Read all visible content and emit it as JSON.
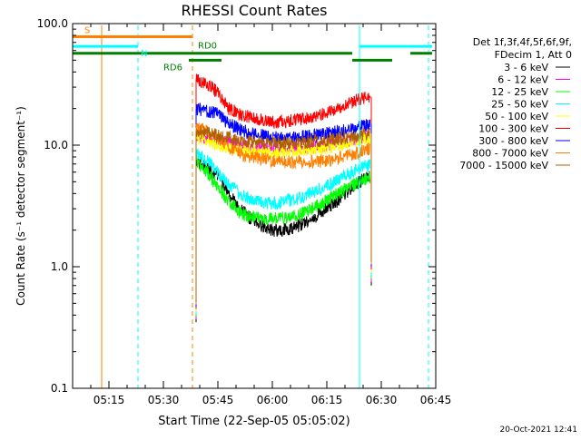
{
  "chart_data": {
    "type": "line",
    "title": "RHESSI Count Rates",
    "xlabel": "Start Time (22-Sep-05 05:05:02)",
    "ylabel": "Count Rate (s⁻¹ detector segment⁻¹)",
    "y_scale": "log",
    "ylim": [
      0.1,
      100.0
    ],
    "xlim": [
      "05:05",
      "06:45"
    ],
    "x_ticks": [
      "05:15",
      "05:30",
      "05:45",
      "06:00",
      "06:15",
      "06:30",
      "06:45"
    ],
    "y_ticks": [
      "0.1",
      "1.0",
      "10.0",
      "100.0"
    ],
    "legend_header": [
      "Det 1f,3f,4f,5f,6f,9f,",
      "FDecim 1, Att 0"
    ],
    "legend_position": "right",
    "grid": false,
    "series": [
      {
        "name": "3 - 6 keV",
        "color": "#000000",
        "x": [
          "05:39",
          "05:42",
          "05:45",
          "05:48",
          "05:51",
          "05:54",
          "05:57",
          "06:00",
          "06:03",
          "06:06",
          "06:09",
          "06:12",
          "06:15",
          "06:18",
          "06:21",
          "06:24",
          "06:27"
        ],
        "values": [
          7.5,
          6.5,
          5.5,
          4.0,
          3.0,
          2.5,
          2.2,
          2.0,
          2.0,
          2.1,
          2.3,
          2.6,
          3.0,
          3.5,
          4.2,
          5.0,
          5.5
        ]
      },
      {
        "name": "6 - 12 keV",
        "color": "#ff00ff",
        "x": [
          "05:39",
          "05:42",
          "05:45",
          "05:48",
          "05:51",
          "05:54",
          "05:57",
          "06:00",
          "06:03",
          "06:06",
          "06:09",
          "06:12",
          "06:15",
          "06:18",
          "06:21",
          "06:24",
          "06:27"
        ],
        "values": [
          12,
          11.5,
          11,
          10.5,
          10,
          9.7,
          9.5,
          9.5,
          9.5,
          9.5,
          9.5,
          9.7,
          10,
          10.5,
          11,
          11.5,
          12
        ]
      },
      {
        "name": "12 - 25 keV",
        "color": "#00ff00",
        "x": [
          "05:39",
          "05:42",
          "05:45",
          "05:48",
          "05:51",
          "05:54",
          "05:57",
          "06:00",
          "06:03",
          "06:06",
          "06:09",
          "06:12",
          "06:15",
          "06:18",
          "06:21",
          "06:24",
          "06:27"
        ],
        "values": [
          7.5,
          6.0,
          4.5,
          3.5,
          2.8,
          2.6,
          2.5,
          2.5,
          2.5,
          2.6,
          2.8,
          3.1,
          3.5,
          4.0,
          4.5,
          5.0,
          5.5
        ]
      },
      {
        "name": "25 - 50 keV",
        "color": "#00ffff",
        "x": [
          "05:39",
          "05:42",
          "05:45",
          "05:48",
          "05:51",
          "05:54",
          "05:57",
          "06:00",
          "06:03",
          "06:06",
          "06:09",
          "06:12",
          "06:15",
          "06:18",
          "06:21",
          "06:24",
          "06:27"
        ],
        "values": [
          8.5,
          7.5,
          6.0,
          4.8,
          4.0,
          3.6,
          3.4,
          3.3,
          3.4,
          3.6,
          3.8,
          4.2,
          4.6,
          5.2,
          5.8,
          6.5,
          7.0
        ]
      },
      {
        "name": "50 - 100 keV",
        "color": "#ffff00",
        "x": [
          "05:39",
          "05:42",
          "05:45",
          "05:48",
          "05:51",
          "05:54",
          "05:57",
          "06:00",
          "06:03",
          "06:06",
          "06:09",
          "06:12",
          "06:15",
          "06:18",
          "06:21",
          "06:24",
          "06:27"
        ],
        "values": [
          12,
          11,
          10,
          9.5,
          9,
          9,
          8.8,
          8.8,
          8.8,
          9,
          9,
          9.2,
          9.5,
          10,
          10.5,
          11,
          11.5
        ]
      },
      {
        "name": "100 - 300 keV",
        "color": "#ff0000",
        "x": [
          "05:39",
          "05:42",
          "05:45",
          "05:48",
          "05:51",
          "05:54",
          "05:57",
          "06:00",
          "06:03",
          "06:06",
          "06:09",
          "06:12",
          "06:15",
          "06:18",
          "06:21",
          "06:24",
          "06:27"
        ],
        "values": [
          35,
          32,
          27,
          20,
          18,
          17,
          16,
          15.5,
          15.5,
          16,
          16.5,
          17.5,
          18.5,
          20,
          22,
          24,
          25
        ]
      },
      {
        "name": "300 - 800 keV",
        "color": "#0000ff",
        "x": [
          "05:39",
          "05:42",
          "05:45",
          "05:48",
          "05:51",
          "05:54",
          "05:57",
          "06:00",
          "06:03",
          "06:06",
          "06:09",
          "06:12",
          "06:15",
          "06:18",
          "06:21",
          "06:24",
          "06:27"
        ],
        "values": [
          20,
          19,
          18,
          15,
          13.5,
          12.5,
          12,
          11.5,
          11.5,
          11.5,
          11.8,
          12,
          12.5,
          13,
          13.5,
          14,
          15
        ]
      },
      {
        "name": "800 - 7000 keV",
        "color": "#ff8000",
        "x": [
          "05:39",
          "05:42",
          "05:45",
          "05:48",
          "05:51",
          "05:54",
          "05:57",
          "06:00",
          "06:03",
          "06:06",
          "06:09",
          "06:12",
          "06:15",
          "06:18",
          "06:21",
          "06:24",
          "06:27"
        ],
        "values": [
          14,
          13,
          11.5,
          9.5,
          8.5,
          8,
          7.7,
          7.5,
          7.3,
          7.3,
          7.3,
          7.3,
          7.5,
          7.8,
          8.2,
          8.8,
          9.5
        ]
      },
      {
        "name": "7000 - 15000 keV",
        "color": "#b06000",
        "x": [
          "05:39",
          "05:42",
          "05:45",
          "05:48",
          "05:51",
          "05:54",
          "05:57",
          "06:00",
          "06:03",
          "06:06",
          "06:09",
          "06:12",
          "06:15",
          "06:18",
          "06:21",
          "06:24",
          "06:27"
        ],
        "values": [
          13,
          12.5,
          12,
          11.5,
          11,
          10.8,
          10.6,
          10.5,
          10.5,
          10.5,
          10.6,
          10.8,
          11,
          11.3,
          11.6,
          12,
          12.5
        ]
      }
    ],
    "annotations": [
      {
        "label": "S",
        "color": "#ff8000",
        "level": 78,
        "from": "05:05",
        "to": "05:38"
      },
      {
        "label": "N",
        "color": "#00ffff",
        "level": 65,
        "from": "05:05",
        "to": "05:23"
      },
      {
        "label": "RD0",
        "color": "#008000",
        "level": 57,
        "from": "05:37",
        "to": "06:22"
      },
      {
        "label": "RD6",
        "color": "#008000",
        "level": 50,
        "from": "05:37",
        "to": "05:46"
      }
    ],
    "extra_bars": [
      {
        "color": "#00ffff",
        "level": 65,
        "from": "06:24",
        "to": "06:44"
      },
      {
        "color": "#008000",
        "level": 57,
        "from": "05:05",
        "to": "05:37"
      },
      {
        "color": "#008000",
        "level": 57,
        "from": "06:38",
        "to": "06:44"
      },
      {
        "color": "#008000",
        "level": 50,
        "from": "06:22",
        "to": "06:33"
      }
    ],
    "vertical_markers": [
      {
        "time": "05:05",
        "color": "#00ffff",
        "style": "solid"
      },
      {
        "time": "05:13",
        "color": "#ff8000",
        "style": "solid"
      },
      {
        "time": "05:23",
        "color": "#00ffff",
        "style": "dashed"
      },
      {
        "time": "05:38",
        "color": "#ff8000",
        "style": "dashed"
      },
      {
        "time": "06:24",
        "color": "#00ffff",
        "style": "solid"
      },
      {
        "time": "06:43",
        "color": "#00ffff",
        "style": "dashed"
      }
    ]
  },
  "footer_timestamp": "20-Oct-2021 12:41"
}
